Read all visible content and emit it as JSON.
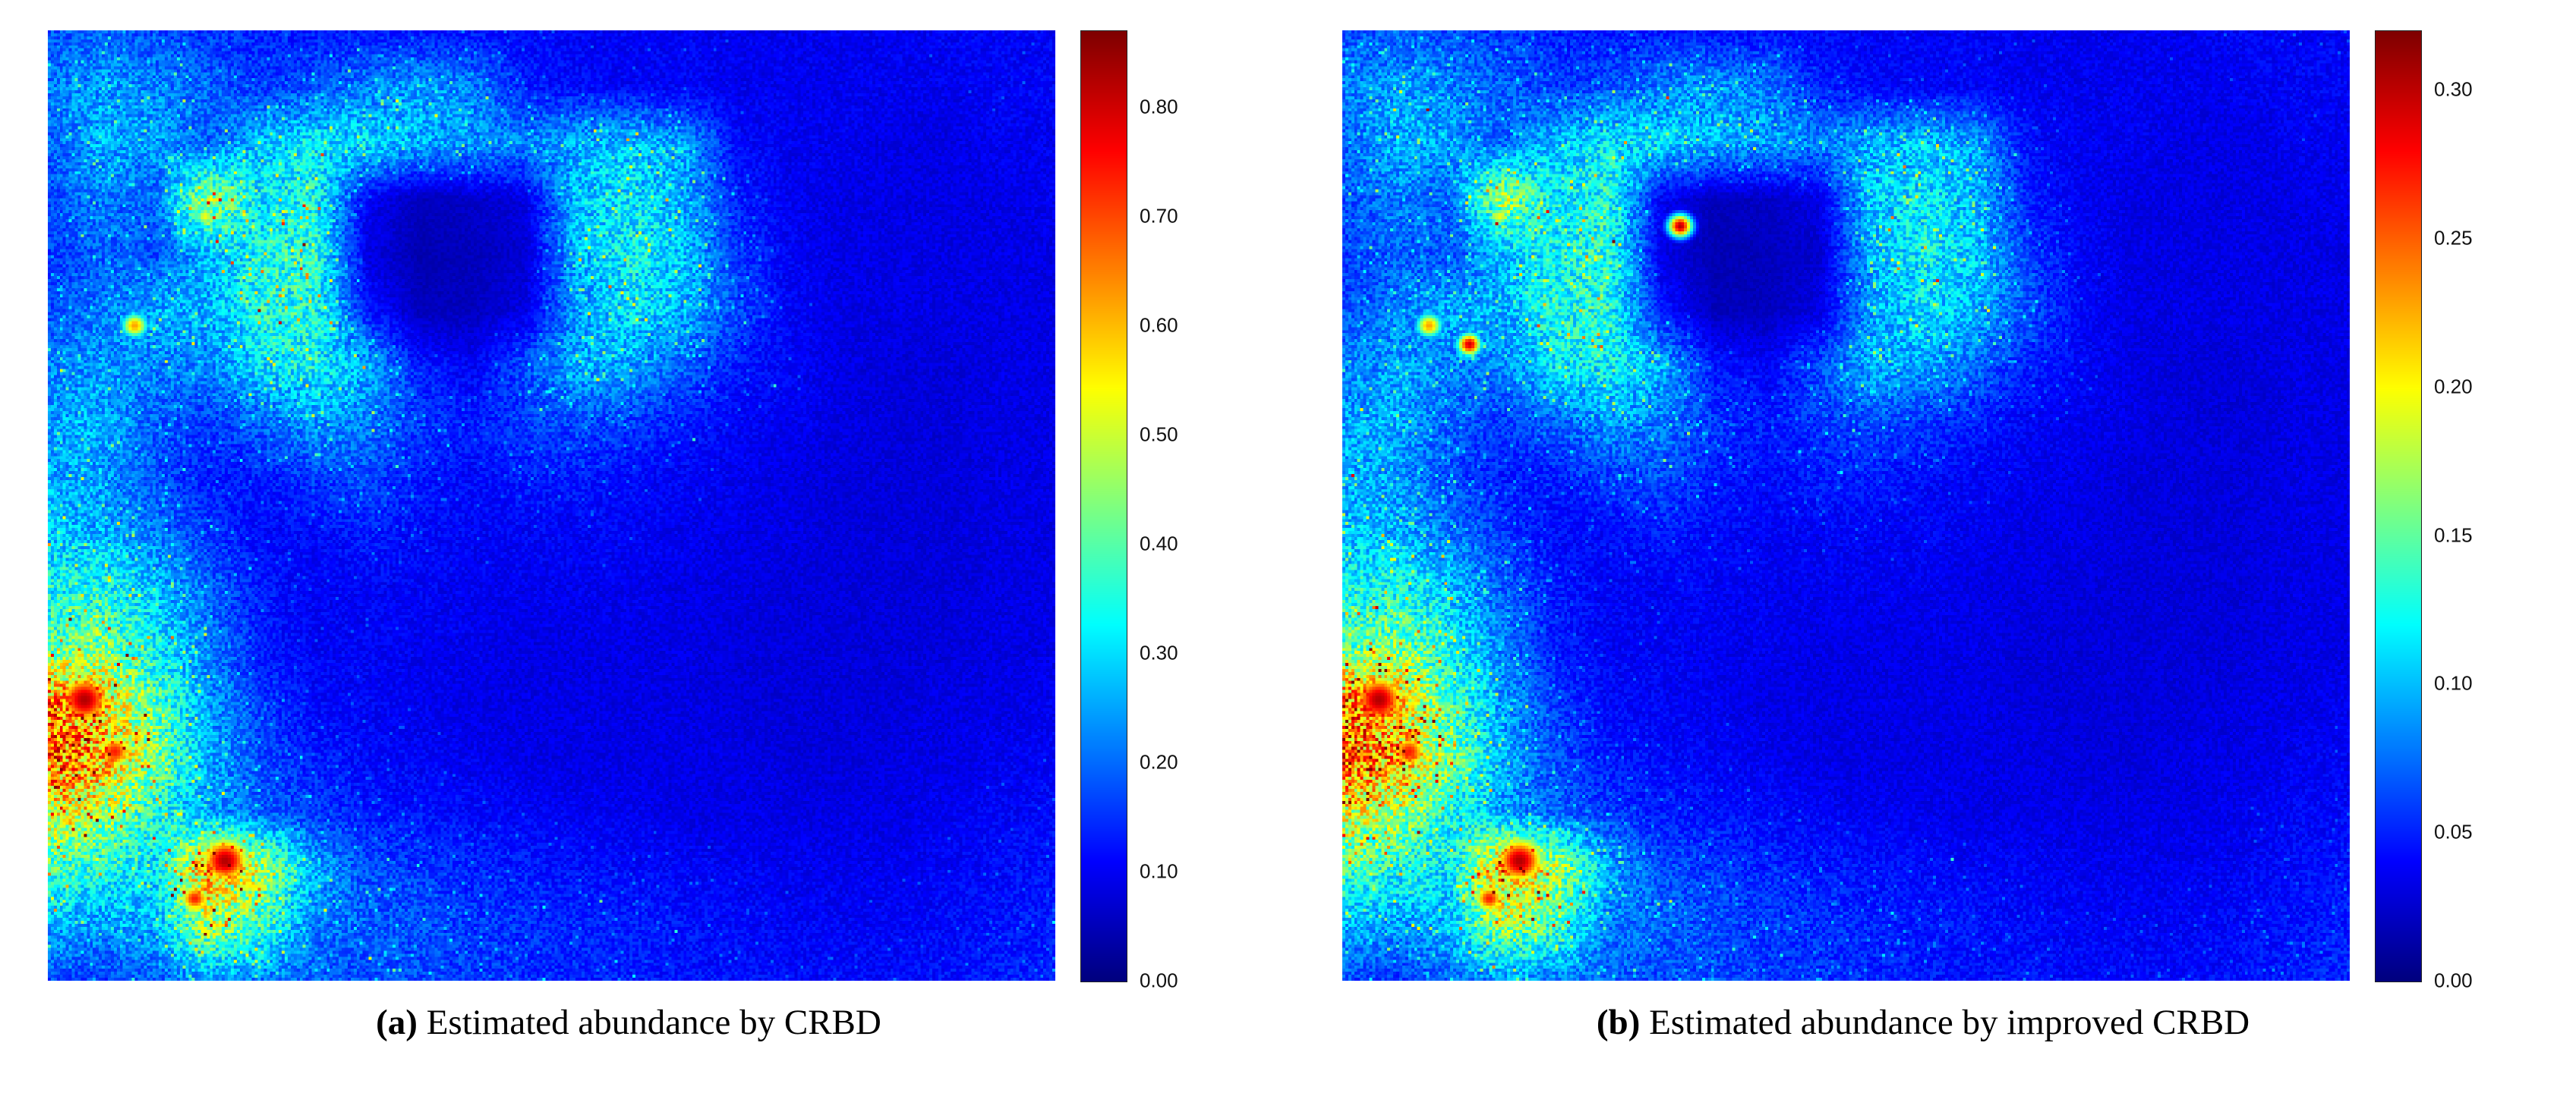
{
  "chart_data": {
    "type": "heatmap",
    "colormap": "jet",
    "scene_description": "Two abundance maps of the same hyperspectral urban scene estimated by two algorithms; mostly blue low-abundance background, cyan-green textured urban cluster in the upper-left-center containing a dark navy low-abundance patch, bright cyan/green/yellow/red high-abundance speckled region in the lower-left corner with intense red hotspots, speckled blue-cyan bottom strip, darker blue right half.",
    "grid_rows": 18,
    "grid_cols": 20,
    "base_grid_normalized": [
      [
        0.2,
        0.22,
        0.2,
        0.18,
        0.16,
        0.15,
        0.15,
        0.14,
        0.14,
        0.13,
        0.12,
        0.12,
        0.12,
        0.11,
        0.11,
        0.11,
        0.11,
        0.12,
        0.12,
        0.12
      ],
      [
        0.25,
        0.28,
        0.26,
        0.22,
        0.18,
        0.2,
        0.25,
        0.28,
        0.25,
        0.15,
        0.13,
        0.12,
        0.12,
        0.11,
        0.11,
        0.11,
        0.11,
        0.11,
        0.12,
        0.12
      ],
      [
        0.22,
        0.3,
        0.28,
        0.22,
        0.32,
        0.36,
        0.34,
        0.3,
        0.28,
        0.25,
        0.3,
        0.32,
        0.28,
        0.13,
        0.11,
        0.11,
        0.1,
        0.1,
        0.11,
        0.11
      ],
      [
        0.2,
        0.25,
        0.22,
        0.55,
        0.35,
        0.4,
        0.12,
        0.06,
        0.07,
        0.1,
        0.32,
        0.36,
        0.3,
        0.15,
        0.11,
        0.1,
        0.1,
        0.1,
        0.1,
        0.11
      ],
      [
        0.18,
        0.22,
        0.2,
        0.3,
        0.38,
        0.42,
        0.1,
        0.05,
        0.06,
        0.08,
        0.3,
        0.38,
        0.32,
        0.18,
        0.12,
        0.1,
        0.1,
        0.1,
        0.1,
        0.1
      ],
      [
        0.2,
        0.25,
        0.3,
        0.3,
        0.4,
        0.4,
        0.15,
        0.06,
        0.06,
        0.1,
        0.28,
        0.35,
        0.3,
        0.2,
        0.12,
        0.1,
        0.1,
        0.1,
        0.1,
        0.1
      ],
      [
        0.25,
        0.28,
        0.25,
        0.25,
        0.35,
        0.38,
        0.3,
        0.15,
        0.12,
        0.2,
        0.3,
        0.28,
        0.22,
        0.15,
        0.12,
        0.1,
        0.09,
        0.09,
        0.1,
        0.1
      ],
      [
        0.28,
        0.3,
        0.22,
        0.18,
        0.22,
        0.28,
        0.25,
        0.18,
        0.15,
        0.18,
        0.2,
        0.18,
        0.15,
        0.12,
        0.11,
        0.1,
        0.09,
        0.09,
        0.1,
        0.1
      ],
      [
        0.3,
        0.28,
        0.2,
        0.15,
        0.15,
        0.18,
        0.2,
        0.15,
        0.13,
        0.15,
        0.15,
        0.13,
        0.12,
        0.11,
        0.1,
        0.09,
        0.09,
        0.09,
        0.1,
        0.1
      ],
      [
        0.32,
        0.3,
        0.25,
        0.18,
        0.13,
        0.13,
        0.15,
        0.13,
        0.12,
        0.12,
        0.12,
        0.12,
        0.11,
        0.1,
        0.1,
        0.09,
        0.09,
        0.09,
        0.1,
        0.1
      ],
      [
        0.38,
        0.4,
        0.32,
        0.22,
        0.15,
        0.12,
        0.12,
        0.12,
        0.11,
        0.11,
        0.11,
        0.11,
        0.1,
        0.1,
        0.09,
        0.09,
        0.09,
        0.09,
        0.1,
        0.1
      ],
      [
        0.45,
        0.5,
        0.38,
        0.25,
        0.15,
        0.12,
        0.12,
        0.11,
        0.11,
        0.1,
        0.1,
        0.1,
        0.1,
        0.09,
        0.09,
        0.09,
        0.09,
        0.09,
        0.1,
        0.1
      ],
      [
        0.75,
        0.65,
        0.45,
        0.28,
        0.18,
        0.13,
        0.12,
        0.11,
        0.1,
        0.1,
        0.1,
        0.1,
        0.1,
        0.09,
        0.09,
        0.09,
        0.09,
        0.1,
        0.1,
        0.11
      ],
      [
        0.8,
        0.7,
        0.5,
        0.3,
        0.2,
        0.15,
        0.13,
        0.12,
        0.11,
        0.1,
        0.1,
        0.1,
        0.1,
        0.1,
        0.09,
        0.09,
        0.1,
        0.1,
        0.11,
        0.12
      ],
      [
        0.6,
        0.55,
        0.4,
        0.28,
        0.22,
        0.18,
        0.15,
        0.14,
        0.13,
        0.12,
        0.11,
        0.11,
        0.1,
        0.1,
        0.1,
        0.1,
        0.1,
        0.11,
        0.12,
        0.13
      ],
      [
        0.45,
        0.4,
        0.35,
        0.7,
        0.55,
        0.3,
        0.2,
        0.18,
        0.16,
        0.15,
        0.14,
        0.13,
        0.12,
        0.12,
        0.11,
        0.11,
        0.11,
        0.12,
        0.13,
        0.14
      ],
      [
        0.3,
        0.28,
        0.3,
        0.55,
        0.45,
        0.25,
        0.22,
        0.2,
        0.18,
        0.17,
        0.16,
        0.15,
        0.14,
        0.13,
        0.12,
        0.12,
        0.12,
        0.13,
        0.14,
        0.15
      ],
      [
        0.2,
        0.18,
        0.22,
        0.28,
        0.25,
        0.22,
        0.2,
        0.2,
        0.18,
        0.17,
        0.16,
        0.15,
        0.14,
        0.14,
        0.13,
        0.13,
        0.13,
        0.14,
        0.15,
        0.16
      ]
    ],
    "panels": [
      {
        "id": "a",
        "label": "(a)",
        "caption": "Estimated abundance by CRBD",
        "colorbar": {
          "min": 0.0,
          "max": 0.87,
          "ticks": [
            "0.80",
            "0.70",
            "0.60",
            "0.50",
            "0.40",
            "0.30",
            "0.20",
            "0.10",
            "0.00"
          ]
        },
        "hotspots": [
          {
            "x": 0.085,
            "y": 0.31,
            "r": 0.01,
            "v": 0.72
          },
          {
            "x": 0.155,
            "y": 0.195,
            "r": 0.008,
            "v": 0.62
          },
          {
            "x": 0.035,
            "y": 0.705,
            "r": 0.022,
            "v": 0.95
          },
          {
            "x": 0.065,
            "y": 0.76,
            "r": 0.015,
            "v": 0.85
          },
          {
            "x": 0.175,
            "y": 0.875,
            "r": 0.02,
            "v": 0.95
          },
          {
            "x": 0.145,
            "y": 0.915,
            "r": 0.012,
            "v": 0.85
          }
        ]
      },
      {
        "id": "b",
        "label": "(b)",
        "caption": "Estimated abundance by improved CRBD",
        "colorbar": {
          "min": 0.0,
          "max": 0.32,
          "ticks": [
            "0.30",
            "0.25",
            "0.20",
            "0.15",
            "0.10",
            "0.05",
            "0.00"
          ]
        },
        "hotspots": [
          {
            "x": 0.085,
            "y": 0.31,
            "r": 0.01,
            "v": 0.72
          },
          {
            "x": 0.155,
            "y": 0.195,
            "r": 0.008,
            "v": 0.62
          },
          {
            "x": 0.335,
            "y": 0.205,
            "r": 0.009,
            "v": 0.95
          },
          {
            "x": 0.125,
            "y": 0.33,
            "r": 0.009,
            "v": 0.92
          },
          {
            "x": 0.035,
            "y": 0.705,
            "r": 0.022,
            "v": 0.95
          },
          {
            "x": 0.065,
            "y": 0.76,
            "r": 0.015,
            "v": 0.85
          },
          {
            "x": 0.175,
            "y": 0.875,
            "r": 0.02,
            "v": 0.95
          },
          {
            "x": 0.145,
            "y": 0.915,
            "r": 0.012,
            "v": 0.85
          }
        ]
      }
    ]
  }
}
